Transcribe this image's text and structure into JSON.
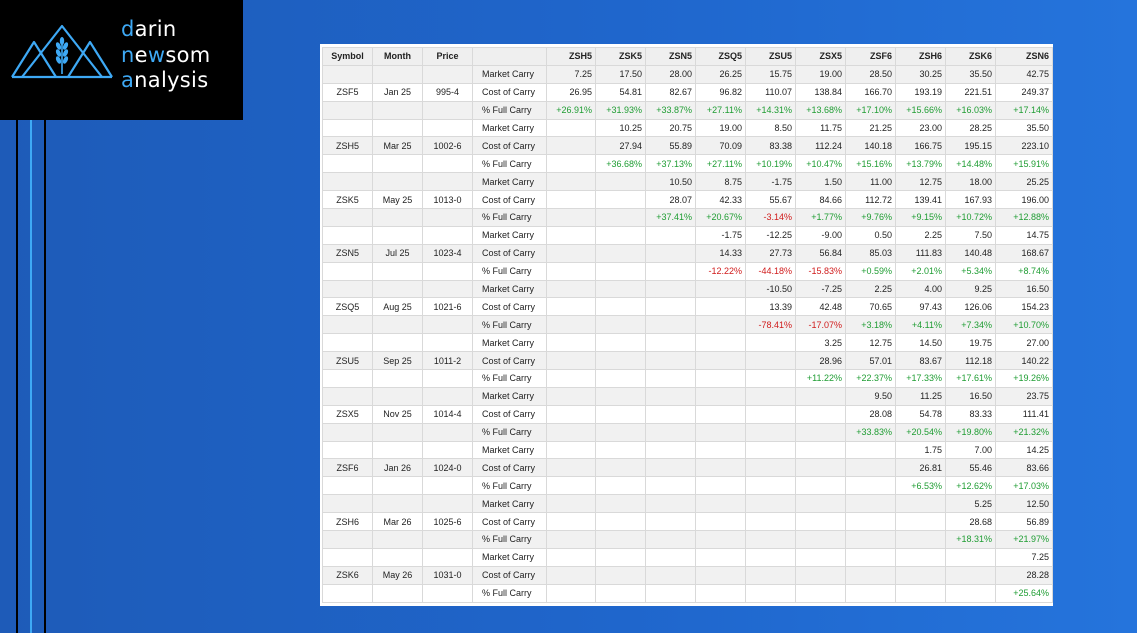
{
  "brand": {
    "accent_color": "#3ea9f5",
    "line1_accent": "d",
    "line1_rest": "arin",
    "line2_accent": "n",
    "line2_mid": "e",
    "line2_accent2": "w",
    "line2_rest": "som",
    "line3_accent": "a",
    "line3_rest": "nalysis"
  },
  "table": {
    "headers": [
      "Symbol",
      "Month",
      "Price",
      "",
      "ZSH5",
      "ZSK5",
      "ZSN5",
      "ZSQ5",
      "ZSU5",
      "ZSX5",
      "ZSF6",
      "ZSH6",
      "ZSK6",
      "ZSN6"
    ],
    "rows": [
      {
        "symbol": "",
        "month": "",
        "price": "",
        "label": "Market Carry",
        "cells": [
          "7.25",
          "17.50",
          "28.00",
          "26.25",
          "15.75",
          "19.00",
          "28.50",
          "30.25",
          "35.50",
          "42.75"
        ]
      },
      {
        "symbol": "ZSF5",
        "month": "Jan 25",
        "price": "995-4",
        "label": "Cost of Carry",
        "cells": [
          "26.95",
          "54.81",
          "82.67",
          "96.82",
          "110.07",
          "138.84",
          "166.70",
          "193.19",
          "221.51",
          "249.37"
        ]
      },
      {
        "symbol": "",
        "month": "",
        "price": "",
        "label": "% Full Carry",
        "cells": [
          "+26.91%",
          "+31.93%",
          "+33.87%",
          "+27.11%",
          "+14.31%",
          "+13.68%",
          "+17.10%",
          "+15.66%",
          "+16.03%",
          "+17.14%"
        ]
      },
      {
        "symbol": "",
        "month": "",
        "price": "",
        "label": "Market Carry",
        "cells": [
          "",
          "10.25",
          "20.75",
          "19.00",
          "8.50",
          "11.75",
          "21.25",
          "23.00",
          "28.25",
          "35.50"
        ]
      },
      {
        "symbol": "ZSH5",
        "month": "Mar 25",
        "price": "1002-6",
        "label": "Cost of Carry",
        "cells": [
          "",
          "27.94",
          "55.89",
          "70.09",
          "83.38",
          "112.24",
          "140.18",
          "166.75",
          "195.15",
          "223.10"
        ]
      },
      {
        "symbol": "",
        "month": "",
        "price": "",
        "label": "% Full Carry",
        "cells": [
          "",
          "+36.68%",
          "+37.13%",
          "+27.11%",
          "+10.19%",
          "+10.47%",
          "+15.16%",
          "+13.79%",
          "+14.48%",
          "+15.91%"
        ]
      },
      {
        "symbol": "",
        "month": "",
        "price": "",
        "label": "Market Carry",
        "cells": [
          "",
          "",
          "10.50",
          "8.75",
          "-1.75",
          "1.50",
          "11.00",
          "12.75",
          "18.00",
          "25.25"
        ]
      },
      {
        "symbol": "ZSK5",
        "month": "May 25",
        "price": "1013-0",
        "label": "Cost of Carry",
        "cells": [
          "",
          "",
          "28.07",
          "42.33",
          "55.67",
          "84.66",
          "112.72",
          "139.41",
          "167.93",
          "196.00"
        ]
      },
      {
        "symbol": "",
        "month": "",
        "price": "",
        "label": "% Full Carry",
        "cells": [
          "",
          "",
          "+37.41%",
          "+20.67%",
          "-3.14%",
          "+1.77%",
          "+9.76%",
          "+9.15%",
          "+10.72%",
          "+12.88%"
        ]
      },
      {
        "symbol": "",
        "month": "",
        "price": "",
        "label": "Market Carry",
        "cells": [
          "",
          "",
          "",
          "-1.75",
          "-12.25",
          "-9.00",
          "0.50",
          "2.25",
          "7.50",
          "14.75"
        ]
      },
      {
        "symbol": "ZSN5",
        "month": "Jul 25",
        "price": "1023-4",
        "label": "Cost of Carry",
        "cells": [
          "",
          "",
          "",
          "14.33",
          "27.73",
          "56.84",
          "85.03",
          "111.83",
          "140.48",
          "168.67"
        ]
      },
      {
        "symbol": "",
        "month": "",
        "price": "",
        "label": "% Full Carry",
        "cells": [
          "",
          "",
          "",
          "-12.22%",
          "-44.18%",
          "-15.83%",
          "+0.59%",
          "+2.01%",
          "+5.34%",
          "+8.74%"
        ]
      },
      {
        "symbol": "",
        "month": "",
        "price": "",
        "label": "Market Carry",
        "cells": [
          "",
          "",
          "",
          "",
          "-10.50",
          "-7.25",
          "2.25",
          "4.00",
          "9.25",
          "16.50"
        ]
      },
      {
        "symbol": "ZSQ5",
        "month": "Aug 25",
        "price": "1021-6",
        "label": "Cost of Carry",
        "cells": [
          "",
          "",
          "",
          "",
          "13.39",
          "42.48",
          "70.65",
          "97.43",
          "126.06",
          "154.23"
        ]
      },
      {
        "symbol": "",
        "month": "",
        "price": "",
        "label": "% Full Carry",
        "cells": [
          "",
          "",
          "",
          "",
          "-78.41%",
          "-17.07%",
          "+3.18%",
          "+4.11%",
          "+7.34%",
          "+10.70%"
        ]
      },
      {
        "symbol": "",
        "month": "",
        "price": "",
        "label": "Market Carry",
        "cells": [
          "",
          "",
          "",
          "",
          "",
          "3.25",
          "12.75",
          "14.50",
          "19.75",
          "27.00"
        ]
      },
      {
        "symbol": "ZSU5",
        "month": "Sep 25",
        "price": "1011-2",
        "label": "Cost of Carry",
        "cells": [
          "",
          "",
          "",
          "",
          "",
          "28.96",
          "57.01",
          "83.67",
          "112.18",
          "140.22"
        ]
      },
      {
        "symbol": "",
        "month": "",
        "price": "",
        "label": "% Full Carry",
        "cells": [
          "",
          "",
          "",
          "",
          "",
          "+11.22%",
          "+22.37%",
          "+17.33%",
          "+17.61%",
          "+19.26%"
        ]
      },
      {
        "symbol": "",
        "month": "",
        "price": "",
        "label": "Market Carry",
        "cells": [
          "",
          "",
          "",
          "",
          "",
          "",
          "9.50",
          "11.25",
          "16.50",
          "23.75"
        ]
      },
      {
        "symbol": "ZSX5",
        "month": "Nov 25",
        "price": "1014-4",
        "label": "Cost of Carry",
        "cells": [
          "",
          "",
          "",
          "",
          "",
          "",
          "28.08",
          "54.78",
          "83.33",
          "111.41"
        ]
      },
      {
        "symbol": "",
        "month": "",
        "price": "",
        "label": "% Full Carry",
        "cells": [
          "",
          "",
          "",
          "",
          "",
          "",
          "+33.83%",
          "+20.54%",
          "+19.80%",
          "+21.32%"
        ]
      },
      {
        "symbol": "",
        "month": "",
        "price": "",
        "label": "Market Carry",
        "cells": [
          "",
          "",
          "",
          "",
          "",
          "",
          "",
          "1.75",
          "7.00",
          "14.25"
        ]
      },
      {
        "symbol": "ZSF6",
        "month": "Jan 26",
        "price": "1024-0",
        "label": "Cost of Carry",
        "cells": [
          "",
          "",
          "",
          "",
          "",
          "",
          "",
          "26.81",
          "55.46",
          "83.66"
        ]
      },
      {
        "symbol": "",
        "month": "",
        "price": "",
        "label": "% Full Carry",
        "cells": [
          "",
          "",
          "",
          "",
          "",
          "",
          "",
          "+6.53%",
          "+12.62%",
          "+17.03%"
        ]
      },
      {
        "symbol": "",
        "month": "",
        "price": "",
        "label": "Market Carry",
        "cells": [
          "",
          "",
          "",
          "",
          "",
          "",
          "",
          "",
          "5.25",
          "12.50"
        ]
      },
      {
        "symbol": "ZSH6",
        "month": "Mar 26",
        "price": "1025-6",
        "label": "Cost of Carry",
        "cells": [
          "",
          "",
          "",
          "",
          "",
          "",
          "",
          "",
          "28.68",
          "56.89"
        ]
      },
      {
        "symbol": "",
        "month": "",
        "price": "",
        "label": "% Full Carry",
        "cells": [
          "",
          "",
          "",
          "",
          "",
          "",
          "",
          "",
          "+18.31%",
          "+21.97%"
        ]
      },
      {
        "symbol": "",
        "month": "",
        "price": "",
        "label": "Market Carry",
        "cells": [
          "",
          "",
          "",
          "",
          "",
          "",
          "",
          "",
          "",
          "7.25"
        ]
      },
      {
        "symbol": "ZSK6",
        "month": "May 26",
        "price": "1031-0",
        "label": "Cost of Carry",
        "cells": [
          "",
          "",
          "",
          "",
          "",
          "",
          "",
          "",
          "",
          "28.28"
        ]
      },
      {
        "symbol": "",
        "month": "",
        "price": "",
        "label": "% Full Carry",
        "cells": [
          "",
          "",
          "",
          "",
          "",
          "",
          "",
          "",
          "",
          "+25.64%"
        ]
      }
    ]
  },
  "colors": {
    "positive": "#1f9d33",
    "negative": "#d01b1b",
    "background": "#1f66cc"
  }
}
